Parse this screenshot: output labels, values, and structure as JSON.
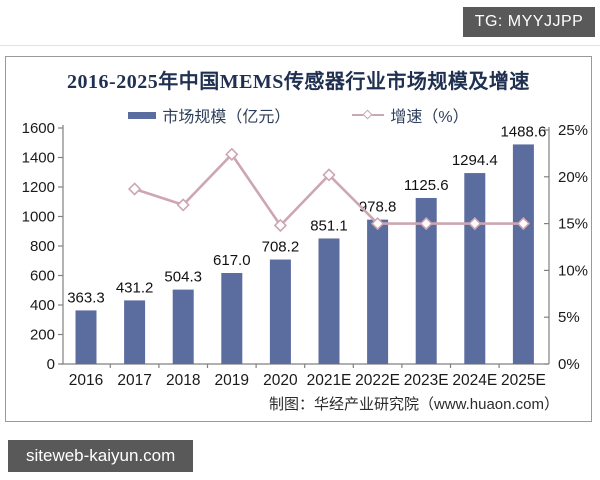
{
  "overlay": {
    "tg_badge": "TG: MYYJJPP",
    "site_watermark": "siteweb-kaiyun.com",
    "badge_bg": "#595959"
  },
  "chart_data": {
    "type": "bar",
    "title": "2016-2025年中国MEMS传感器行业市场规模及增速",
    "title_color": "#1F3050",
    "categories": [
      "2016",
      "2017",
      "2018",
      "2019",
      "2020",
      "2021E",
      "2022E",
      "2023E",
      "2024E",
      "2025E"
    ],
    "series": [
      {
        "name": "市场规模（亿元）",
        "kind": "bar",
        "axis": "left",
        "color": "#5B6C9E",
        "values": [
          363.3,
          431.2,
          504.3,
          617.0,
          708.2,
          851.1,
          978.8,
          1125.6,
          1294.4,
          1488.6
        ],
        "value_labels": [
          "363.3",
          "431.2",
          "504.3",
          "617.0",
          "708.2",
          "851.1",
          "978.8",
          "1125.6",
          "1294.4",
          "1488.6"
        ]
      },
      {
        "name": "增速（%）",
        "kind": "line",
        "axis": "right",
        "color": "#CDA6B1",
        "marker": "white-diamond",
        "values": [
          null,
          18.7,
          17.0,
          22.4,
          14.8,
          20.2,
          15.0,
          15.0,
          15.0,
          15.0
        ]
      }
    ],
    "left_axis": {
      "min": 0,
      "max": 1600,
      "step": 200,
      "tick_labels": [
        "0",
        "200",
        "400",
        "600",
        "800",
        "1000",
        "1200",
        "1400",
        "1600"
      ]
    },
    "right_axis": {
      "min": 0,
      "max": 25,
      "step": 5,
      "tick_labels": [
        "0%",
        "5%",
        "10%",
        "15%",
        "20%",
        "25%"
      ]
    },
    "grid": false,
    "legend_position": "top",
    "source_note": "制图：华经产业研究院（www.huaon.com）"
  }
}
